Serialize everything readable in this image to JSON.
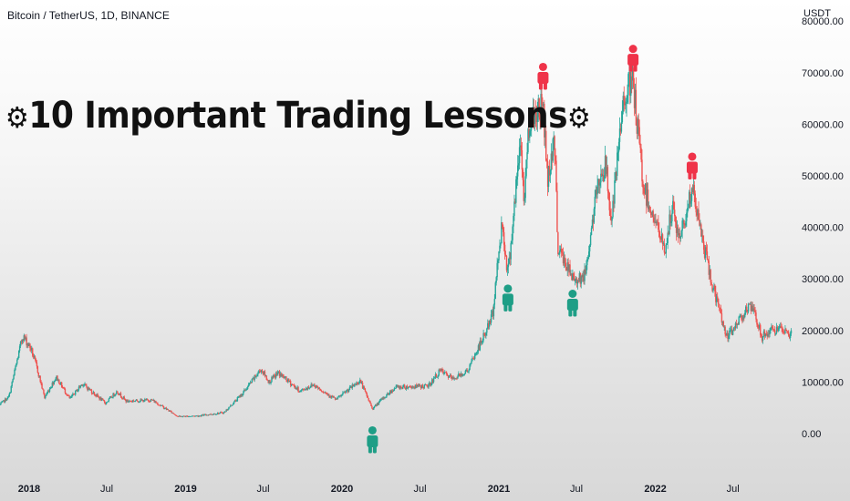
{
  "header": {
    "symbol": "Bitcoin / TetherUS, 1D, BINANCE",
    "unit": "USDT"
  },
  "headline": {
    "gear_glyph": "⚙",
    "text": "10 Important Trading Lessons"
  },
  "colors": {
    "up": "#26a69a",
    "down": "#ef5350",
    "marker_buy": "#1e9e86",
    "marker_sell": "#ef3349"
  },
  "chart_data": {
    "type": "candlestick",
    "y_axis": {
      "ticks": [
        0,
        10000,
        20000,
        30000,
        40000,
        50000,
        60000,
        70000
      ],
      "tick_labels": [
        "0.00",
        "10000.00",
        "20000.00",
        "30000.00",
        "40000.00",
        "50000.00",
        "60000.00",
        "70000.00"
      ],
      "top_partial_label": "80000.00",
      "ylim": [
        -3000,
        82000
      ]
    },
    "x_axis": {
      "ticks": [
        {
          "label": "2018",
          "date": "2018-01-01",
          "year": true
        },
        {
          "label": "Jul",
          "date": "2018-07-01",
          "year": false
        },
        {
          "label": "2019",
          "date": "2019-01-01",
          "year": true
        },
        {
          "label": "Jul",
          "date": "2019-07-01",
          "year": false
        },
        {
          "label": "2020",
          "date": "2020-01-01",
          "year": true
        },
        {
          "label": "Jul",
          "date": "2020-07-01",
          "year": false
        },
        {
          "label": "2021",
          "date": "2021-01-01",
          "year": true
        },
        {
          "label": "Jul",
          "date": "2021-07-01",
          "year": false
        },
        {
          "label": "2022",
          "date": "2022-01-01",
          "year": true
        },
        {
          "label": "Jul",
          "date": "2022-07-01",
          "year": false
        }
      ],
      "range": [
        "2017-10-25",
        "2022-11-15"
      ]
    },
    "price_path": [
      [
        "2017-10-25",
        5600
      ],
      [
        "2017-11-15",
        7200
      ],
      [
        "2017-12-17",
        19000
      ],
      [
        "2018-01-05",
        16500
      ],
      [
        "2018-01-20",
        12500
      ],
      [
        "2018-02-06",
        7000
      ],
      [
        "2018-03-05",
        11000
      ],
      [
        "2018-04-06",
        6700
      ],
      [
        "2018-05-05",
        9700
      ],
      [
        "2018-06-28",
        5900
      ],
      [
        "2018-07-25",
        8200
      ],
      [
        "2018-08-15",
        6300
      ],
      [
        "2018-10-15",
        6500
      ],
      [
        "2018-11-20",
        4600
      ],
      [
        "2018-12-15",
        3300
      ],
      [
        "2019-02-01",
        3450
      ],
      [
        "2019-04-01",
        4100
      ],
      [
        "2019-05-15",
        7900
      ],
      [
        "2019-06-26",
        12500
      ],
      [
        "2019-07-15",
        10000
      ],
      [
        "2019-08-05",
        11800
      ],
      [
        "2019-09-25",
        8200
      ],
      [
        "2019-10-26",
        9500
      ],
      [
        "2019-12-18",
        6600
      ],
      [
        "2020-02-12",
        10300
      ],
      [
        "2020-03-12",
        4800
      ],
      [
        "2020-04-05",
        6800
      ],
      [
        "2020-05-05",
        9000
      ],
      [
        "2020-07-20",
        9200
      ],
      [
        "2020-08-17",
        12200
      ],
      [
        "2020-09-15",
        10600
      ],
      [
        "2020-10-20",
        12200
      ],
      [
        "2020-11-25",
        18500
      ],
      [
        "2020-12-17",
        23000
      ],
      [
        "2021-01-08",
        41000
      ],
      [
        "2021-01-22",
        31000
      ],
      [
        "2021-02-21",
        57000
      ],
      [
        "2021-02-28",
        45000
      ],
      [
        "2021-03-13",
        61000
      ],
      [
        "2021-04-14",
        64000
      ],
      [
        "2021-04-25",
        49000
      ],
      [
        "2021-05-10",
        58000
      ],
      [
        "2021-05-19",
        36000
      ],
      [
        "2021-06-22",
        30000
      ],
      [
        "2021-07-20",
        30500
      ],
      [
        "2021-08-22",
        49500
      ],
      [
        "2021-09-07",
        52000
      ],
      [
        "2021-09-21",
        41000
      ],
      [
        "2021-10-20",
        66000
      ],
      [
        "2021-11-10",
        68000
      ],
      [
        "2021-12-04",
        48000
      ],
      [
        "2022-01-23",
        35500
      ],
      [
        "2022-02-10",
        44000
      ],
      [
        "2022-02-25",
        37500
      ],
      [
        "2022-03-28",
        47400
      ],
      [
        "2022-05-10",
        30000
      ],
      [
        "2022-06-18",
        18500
      ],
      [
        "2022-07-30",
        24000
      ],
      [
        "2022-08-14",
        24400
      ],
      [
        "2022-09-07",
        18800
      ],
      [
        "2022-10-05",
        20300
      ],
      [
        "2022-11-10",
        19400
      ]
    ],
    "markers": [
      {
        "date": "2020-03-12",
        "price": -1500,
        "type": "buy"
      },
      {
        "date": "2021-01-22",
        "price": 26000,
        "type": "buy"
      },
      {
        "date": "2021-06-22",
        "price": 25000,
        "type": "buy"
      },
      {
        "date": "2021-04-14",
        "price": 69000,
        "type": "sell"
      },
      {
        "date": "2021-11-10",
        "price": 72500,
        "type": "sell"
      },
      {
        "date": "2022-03-28",
        "price": 51600,
        "type": "sell"
      }
    ]
  }
}
